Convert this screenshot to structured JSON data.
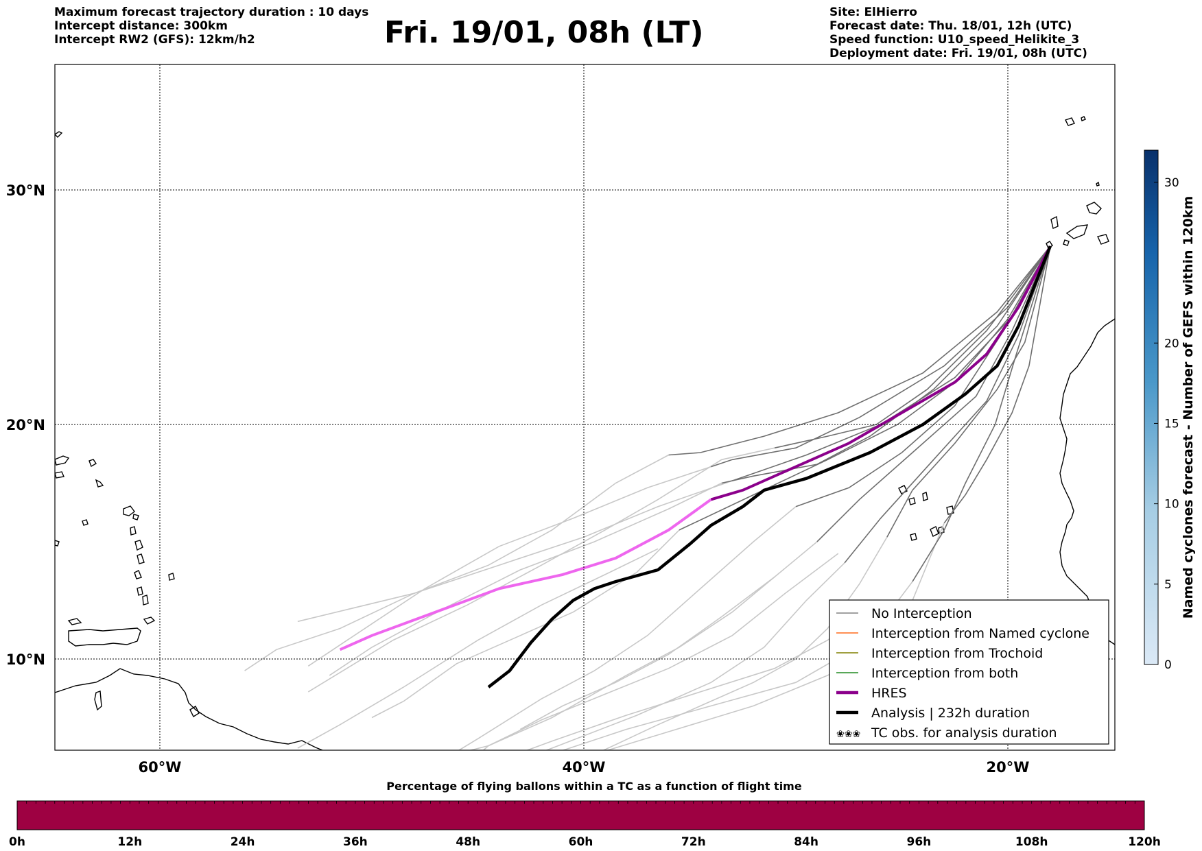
{
  "header_left": [
    "Maximum forecast trajectory duration : 10 days",
    "Intercept distance: 300km",
    "Intercept RW2 (GFS):  12km/h2"
  ],
  "title": "Fri. 19/01, 08h (LT)",
  "header_right": [
    "Site: ElHierro",
    "Forecast date: Thu. 18/01, 12h (UTC)",
    "Speed function: U10_speed_Helikite_3",
    "Deployment date: Fri. 19/01, 08h (UTC)"
  ],
  "map": {
    "lon_range": [
      -65,
      15
    ],
    "lat_range": [
      5,
      35
    ],
    "lon_ticks": [
      {
        "lon": -60,
        "label": "60°W"
      },
      {
        "lon": -40,
        "label": "40°W"
      },
      {
        "lon": -20,
        "label": "20°W"
      }
    ],
    "lat_ticks": [
      {
        "lat": 30,
        "label": "30°N"
      },
      {
        "lat": 20,
        "label": "20°N"
      },
      {
        "lat": 10,
        "label": "10°N"
      }
    ],
    "launch_site": {
      "lon": -18.0,
      "lat": 27.7
    }
  },
  "legend": [
    {
      "label": "No Interception",
      "color": "#808080",
      "style": "thin"
    },
    {
      "label": "Interception from Named cyclone",
      "color": "#ff6a1a",
      "style": "thin"
    },
    {
      "label": "Interception from Trochoid",
      "color": "#808000",
      "style": "thin"
    },
    {
      "label": "Interception from both",
      "color": "#228b22",
      "style": "thin"
    },
    {
      "label": "HRES",
      "color": "#8b008b",
      "style": "thick"
    },
    {
      "label": "Analysis | 232h duration",
      "color": "#000000",
      "style": "thick"
    },
    {
      "label": "TC obs. for analysis duration",
      "color": "#000000",
      "style": "symbol"
    }
  ],
  "colorbar_right": {
    "label": "Named cyclones forecast - Number of GEFS within 120km",
    "ticks": [
      "0",
      "5",
      "10",
      "15",
      "20",
      "30"
    ],
    "range": [
      0,
      32
    ]
  },
  "colorbar_bottom": {
    "title": "Percentage of flying ballons within a TC as a function of flight time",
    "ticks": [
      "0h",
      "12h",
      "24h",
      "36h",
      "48h",
      "60h",
      "72h",
      "84h",
      "96h",
      "108h",
      "120h"
    ],
    "fill_color": "#9e0142",
    "percentage": 0
  },
  "tracks": {
    "hres": [
      [
        -18.0,
        27.6
      ],
      [
        -19.5,
        25.0
      ],
      [
        -21.0,
        23.0
      ],
      [
        -22.5,
        21.8
      ],
      [
        -25.0,
        20.5
      ],
      [
        -27.5,
        19.2
      ],
      [
        -30.5,
        18.0
      ],
      [
        -32.5,
        17.2
      ],
      [
        -34.0,
        16.8
      ]
    ],
    "hres_extended": [
      [
        -34.0,
        16.8
      ],
      [
        -36.0,
        15.5
      ],
      [
        -38.5,
        14.3
      ],
      [
        -41.0,
        13.6
      ],
      [
        -44.0,
        13.0
      ],
      [
        -47.0,
        12.0
      ],
      [
        -50.0,
        11.0
      ],
      [
        -51.5,
        10.4
      ]
    ],
    "analysis": [
      [
        -18.0,
        27.6
      ],
      [
        -19.5,
        24.2
      ],
      [
        -20.5,
        22.5
      ],
      [
        -22.0,
        21.3
      ],
      [
        -24.0,
        20.0
      ],
      [
        -26.5,
        18.8
      ],
      [
        -29.5,
        17.7
      ],
      [
        -31.5,
        17.2
      ],
      [
        -32.5,
        16.5
      ],
      [
        -34.0,
        15.7
      ],
      [
        -35.0,
        14.9
      ],
      [
        -36.5,
        13.8
      ],
      [
        -38.5,
        13.3
      ],
      [
        -39.5,
        13.0
      ],
      [
        -40.5,
        12.5
      ],
      [
        -41.5,
        11.7
      ],
      [
        -42.5,
        10.7
      ],
      [
        -43.5,
        9.5
      ],
      [
        -44.5,
        8.8
      ]
    ],
    "dark_members": [
      [
        [
          -18.0,
          27.6
        ],
        [
          -20.0,
          25.0
        ],
        [
          -23.0,
          22.5
        ],
        [
          -27.0,
          20.3
        ],
        [
          -30.0,
          19.0
        ],
        [
          -33.0,
          18.5
        ],
        [
          -34.0,
          18.2
        ]
      ],
      [
        [
          -18.0,
          27.6
        ],
        [
          -19.8,
          24.6
        ],
        [
          -22.5,
          22.0
        ],
        [
          -26.0,
          20.0
        ],
        [
          -29.5,
          18.7
        ],
        [
          -33.0,
          17.6
        ]
      ],
      [
        [
          -18.0,
          27.6
        ],
        [
          -20.5,
          24.2
        ],
        [
          -23.5,
          21.5
        ],
        [
          -26.5,
          19.5
        ],
        [
          -29.0,
          18.3
        ],
        [
          -32.0,
          17.8
        ],
        [
          -33.5,
          17.5
        ]
      ],
      [
        [
          -18.0,
          27.6
        ],
        [
          -21.0,
          24.0
        ],
        [
          -23.8,
          21.5
        ],
        [
          -26.2,
          20.0
        ],
        [
          -28.5,
          19.5
        ],
        [
          -31.0,
          19.0
        ]
      ],
      [
        [
          -18.0,
          27.6
        ],
        [
          -19.2,
          23.5
        ],
        [
          -20.5,
          21.5
        ],
        [
          -22.5,
          19.2
        ],
        [
          -24.5,
          17.2
        ],
        [
          -25.7,
          15.2
        ]
      ],
      [
        [
          -18.0,
          27.6
        ],
        [
          -19.5,
          23.8
        ],
        [
          -21.0,
          21.0
        ],
        [
          -23.5,
          18.5
        ],
        [
          -26.0,
          16.0
        ],
        [
          -27.7,
          14.1
        ]
      ],
      [
        [
          -18.0,
          27.6
        ],
        [
          -19.8,
          24.0
        ],
        [
          -21.5,
          21.2
        ],
        [
          -24.5,
          18.8
        ],
        [
          -27.0,
          16.8
        ],
        [
          -29.0,
          15.0
        ]
      ],
      [
        [
          -18.0,
          27.6
        ],
        [
          -20.2,
          24.0
        ],
        [
          -22.5,
          20.8
        ],
        [
          -25.0,
          18.8
        ],
        [
          -27.5,
          17.3
        ],
        [
          -30.0,
          16.5
        ]
      ],
      [
        [
          -18.0,
          27.6
        ],
        [
          -19.6,
          23.0
        ],
        [
          -20.6,
          20.0
        ],
        [
          -22.0,
          17.5
        ],
        [
          -23.0,
          15.5
        ],
        [
          -24.5,
          13.3
        ]
      ],
      [
        [
          -18.0,
          27.6
        ],
        [
          -20.0,
          24.5
        ],
        [
          -22.5,
          21.8
        ],
        [
          -25.2,
          20.0
        ],
        [
          -28.5,
          18.5
        ],
        [
          -32.0,
          17.0
        ],
        [
          -35.5,
          15.5
        ]
      ],
      [
        [
          -18.0,
          27.6
        ],
        [
          -20.5,
          24.8
        ],
        [
          -24.0,
          22.2
        ],
        [
          -28.0,
          20.5
        ],
        [
          -31.5,
          19.5
        ],
        [
          -34.5,
          18.8
        ],
        [
          -36.0,
          18.7
        ]
      ],
      [
        [
          -18.0,
          27.6
        ],
        [
          -19.0,
          22.5
        ],
        [
          -19.8,
          20.5
        ],
        [
          -21.0,
          18.5
        ],
        [
          -22.0,
          17.0
        ],
        [
          -23.0,
          15.8
        ]
      ]
    ],
    "light_members": [
      [
        [
          -34.0,
          18.2
        ],
        [
          -37.0,
          17.3
        ],
        [
          -40.5,
          16.0
        ],
        [
          -44.0,
          14.8
        ],
        [
          -47.5,
          13.0
        ],
        [
          -50.0,
          11.5
        ],
        [
          -53.0,
          9.7
        ]
      ],
      [
        [
          -33.0,
          17.6
        ],
        [
          -36.5,
          16.5
        ],
        [
          -40.0,
          15.2
        ],
        [
          -44.0,
          14.0
        ],
        [
          -48.0,
          12.8
        ],
        [
          -53.5,
          11.6
        ]
      ],
      [
        [
          -33.5,
          17.5
        ],
        [
          -36.0,
          16.4
        ],
        [
          -39.5,
          15.0
        ],
        [
          -43.0,
          13.8
        ],
        [
          -46.5,
          12.2
        ],
        [
          -50.0,
          10.5
        ],
        [
          -52.0,
          9.3
        ]
      ],
      [
        [
          -31.0,
          19.0
        ],
        [
          -33.5,
          18.5
        ],
        [
          -36.5,
          16.8
        ],
        [
          -39.0,
          15.5
        ],
        [
          -42.0,
          14.0
        ],
        [
          -45.5,
          12.3
        ],
        [
          -49.0,
          10.8
        ],
        [
          -53.0,
          8.6
        ]
      ],
      [
        [
          -25.7,
          15.2
        ],
        [
          -27.0,
          13.2
        ],
        [
          -28.5,
          11.3
        ],
        [
          -30.0,
          10.0
        ],
        [
          -32.0,
          9.0
        ],
        [
          -34.5,
          8.0
        ],
        [
          -36.5,
          7.2
        ],
        [
          -40.5,
          5.5
        ]
      ],
      [
        [
          -27.7,
          14.1
        ],
        [
          -29.5,
          12.5
        ],
        [
          -31.5,
          10.5
        ],
        [
          -34.0,
          9.0
        ],
        [
          -37.5,
          7.6
        ],
        [
          -41.5,
          6.2
        ],
        [
          -43.5,
          5.5
        ]
      ],
      [
        [
          -29.0,
          15.0
        ],
        [
          -31.0,
          13.5
        ],
        [
          -33.0,
          12.0
        ],
        [
          -35.5,
          10.5
        ],
        [
          -38.0,
          9.3
        ],
        [
          -41.5,
          7.5
        ],
        [
          -44.5,
          6.3
        ],
        [
          -45.5,
          5.5
        ]
      ],
      [
        [
          -30.0,
          16.5
        ],
        [
          -32.0,
          15.0
        ],
        [
          -34.5,
          13.0
        ],
        [
          -37.0,
          11.0
        ],
        [
          -39.5,
          9.5
        ],
        [
          -42.0,
          8.3
        ],
        [
          -45.0,
          6.6
        ],
        [
          -47.0,
          5.5
        ]
      ],
      [
        [
          -24.5,
          13.3
        ],
        [
          -26.0,
          11.5
        ],
        [
          -27.5,
          10.3
        ],
        [
          -30.0,
          9.0
        ],
        [
          -34.0,
          8.0
        ],
        [
          -38.0,
          7.0
        ],
        [
          -42.0,
          5.8
        ]
      ],
      [
        [
          -35.5,
          15.5
        ],
        [
          -37.5,
          13.7
        ],
        [
          -40.5,
          12.0
        ],
        [
          -43.0,
          11.0
        ],
        [
          -46.0,
          9.8
        ],
        [
          -48.5,
          8.2
        ],
        [
          -50.0,
          7.5
        ]
      ],
      [
        [
          -36.0,
          18.7
        ],
        [
          -38.5,
          17.5
        ],
        [
          -41.5,
          15.5
        ],
        [
          -44.5,
          14.0
        ],
        [
          -48.0,
          12.8
        ],
        [
          -51.5,
          11.3
        ],
        [
          -54.5,
          10.4
        ],
        [
          -56.0,
          9.5
        ]
      ],
      [
        [
          -23.0,
          15.8
        ],
        [
          -24.5,
          12.5
        ],
        [
          -26.0,
          10.5
        ],
        [
          -28.5,
          9.3
        ],
        [
          -32.0,
          8.0
        ],
        [
          -36.0,
          6.9
        ],
        [
          -40.0,
          5.8
        ],
        [
          -41.5,
          5.5
        ]
      ],
      [
        [
          -28.0,
          14.5
        ],
        [
          -30.5,
          12.8
        ],
        [
          -33.0,
          11.0
        ],
        [
          -36.0,
          9.6
        ],
        [
          -39.0,
          8.5
        ],
        [
          -42.0,
          7.4
        ],
        [
          -44.5,
          6.3
        ],
        [
          -48.0,
          5.5
        ]
      ],
      [
        [
          -31.0,
          13.5
        ],
        [
          -33.5,
          11.8
        ],
        [
          -36.0,
          10.2
        ],
        [
          -38.5,
          9.0
        ],
        [
          -41.0,
          8.0
        ],
        [
          -43.0,
          7.0
        ]
      ],
      [
        [
          -26.5,
          12.2
        ],
        [
          -28.5,
          10.8
        ],
        [
          -31.0,
          9.6
        ],
        [
          -34.5,
          8.6
        ],
        [
          -38.0,
          7.6
        ],
        [
          -41.5,
          6.5
        ],
        [
          -44.5,
          5.5
        ]
      ],
      [
        [
          -36.5,
          14.7
        ],
        [
          -39.0,
          13.6
        ],
        [
          -42.0,
          12.3
        ],
        [
          -45.0,
          10.8
        ],
        [
          -48.5,
          8.8
        ],
        [
          -51.5,
          7.2
        ],
        [
          -53.5,
          6.2
        ]
      ]
    ]
  }
}
